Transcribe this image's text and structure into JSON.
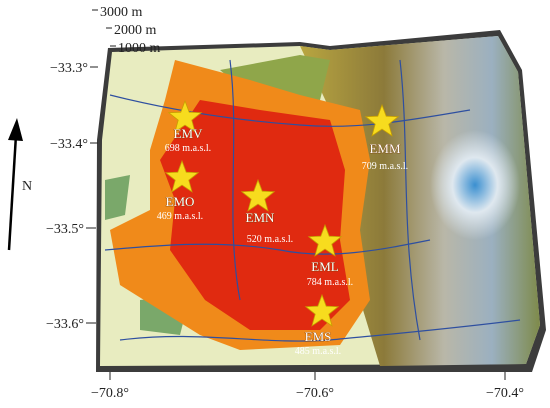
{
  "scale_labels": [
    "3000 m",
    "2000 m",
    "1000 m"
  ],
  "latitude_labels": [
    "−33.3°",
    "−33.4°",
    "−33.5°",
    "−33.6°"
  ],
  "longitude_labels": [
    "−70.8°",
    "−70.6°",
    "−70.4°"
  ],
  "north_label": "N",
  "stations": [
    {
      "name": "EMV",
      "elevation": "698 m.a.s.l."
    },
    {
      "name": "EMO",
      "elevation": "469 m.a.s.l."
    },
    {
      "name": "EMN",
      "elevation": "520 m.a.s.l."
    },
    {
      "name": "EMM",
      "elevation": "709 m.a.s.l."
    },
    {
      "name": "EML",
      "elevation": "784 m.a.s.l."
    },
    {
      "name": "EMS",
      "elevation": "485 m.a.s.l."
    }
  ]
}
